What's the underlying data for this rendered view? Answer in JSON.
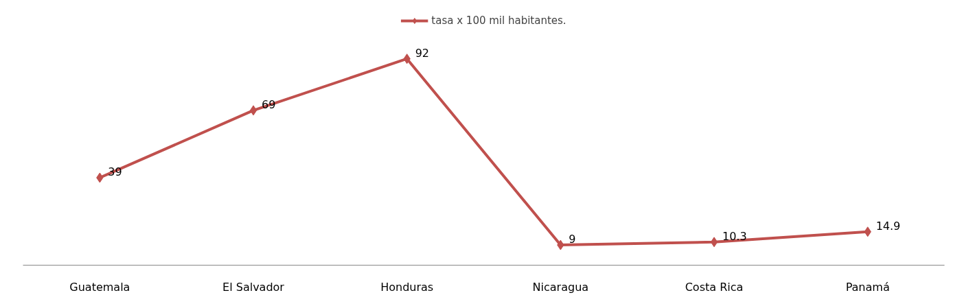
{
  "chart_data": {
    "type": "line",
    "categories": [
      "Guatemala",
      "El Salvador",
      "Honduras",
      "Nicaragua",
      "Costa Rica",
      "Panamá"
    ],
    "series": [
      {
        "name": "tasa x 100 mil habitantes.",
        "color": "#c0504d",
        "values": [
          39,
          69,
          92,
          9,
          10.3,
          14.9
        ]
      }
    ],
    "tick_labels": "x",
    "data_labels": true,
    "legend": "top",
    "grid": false,
    "marker": "diamond",
    "line_style": "solid"
  }
}
